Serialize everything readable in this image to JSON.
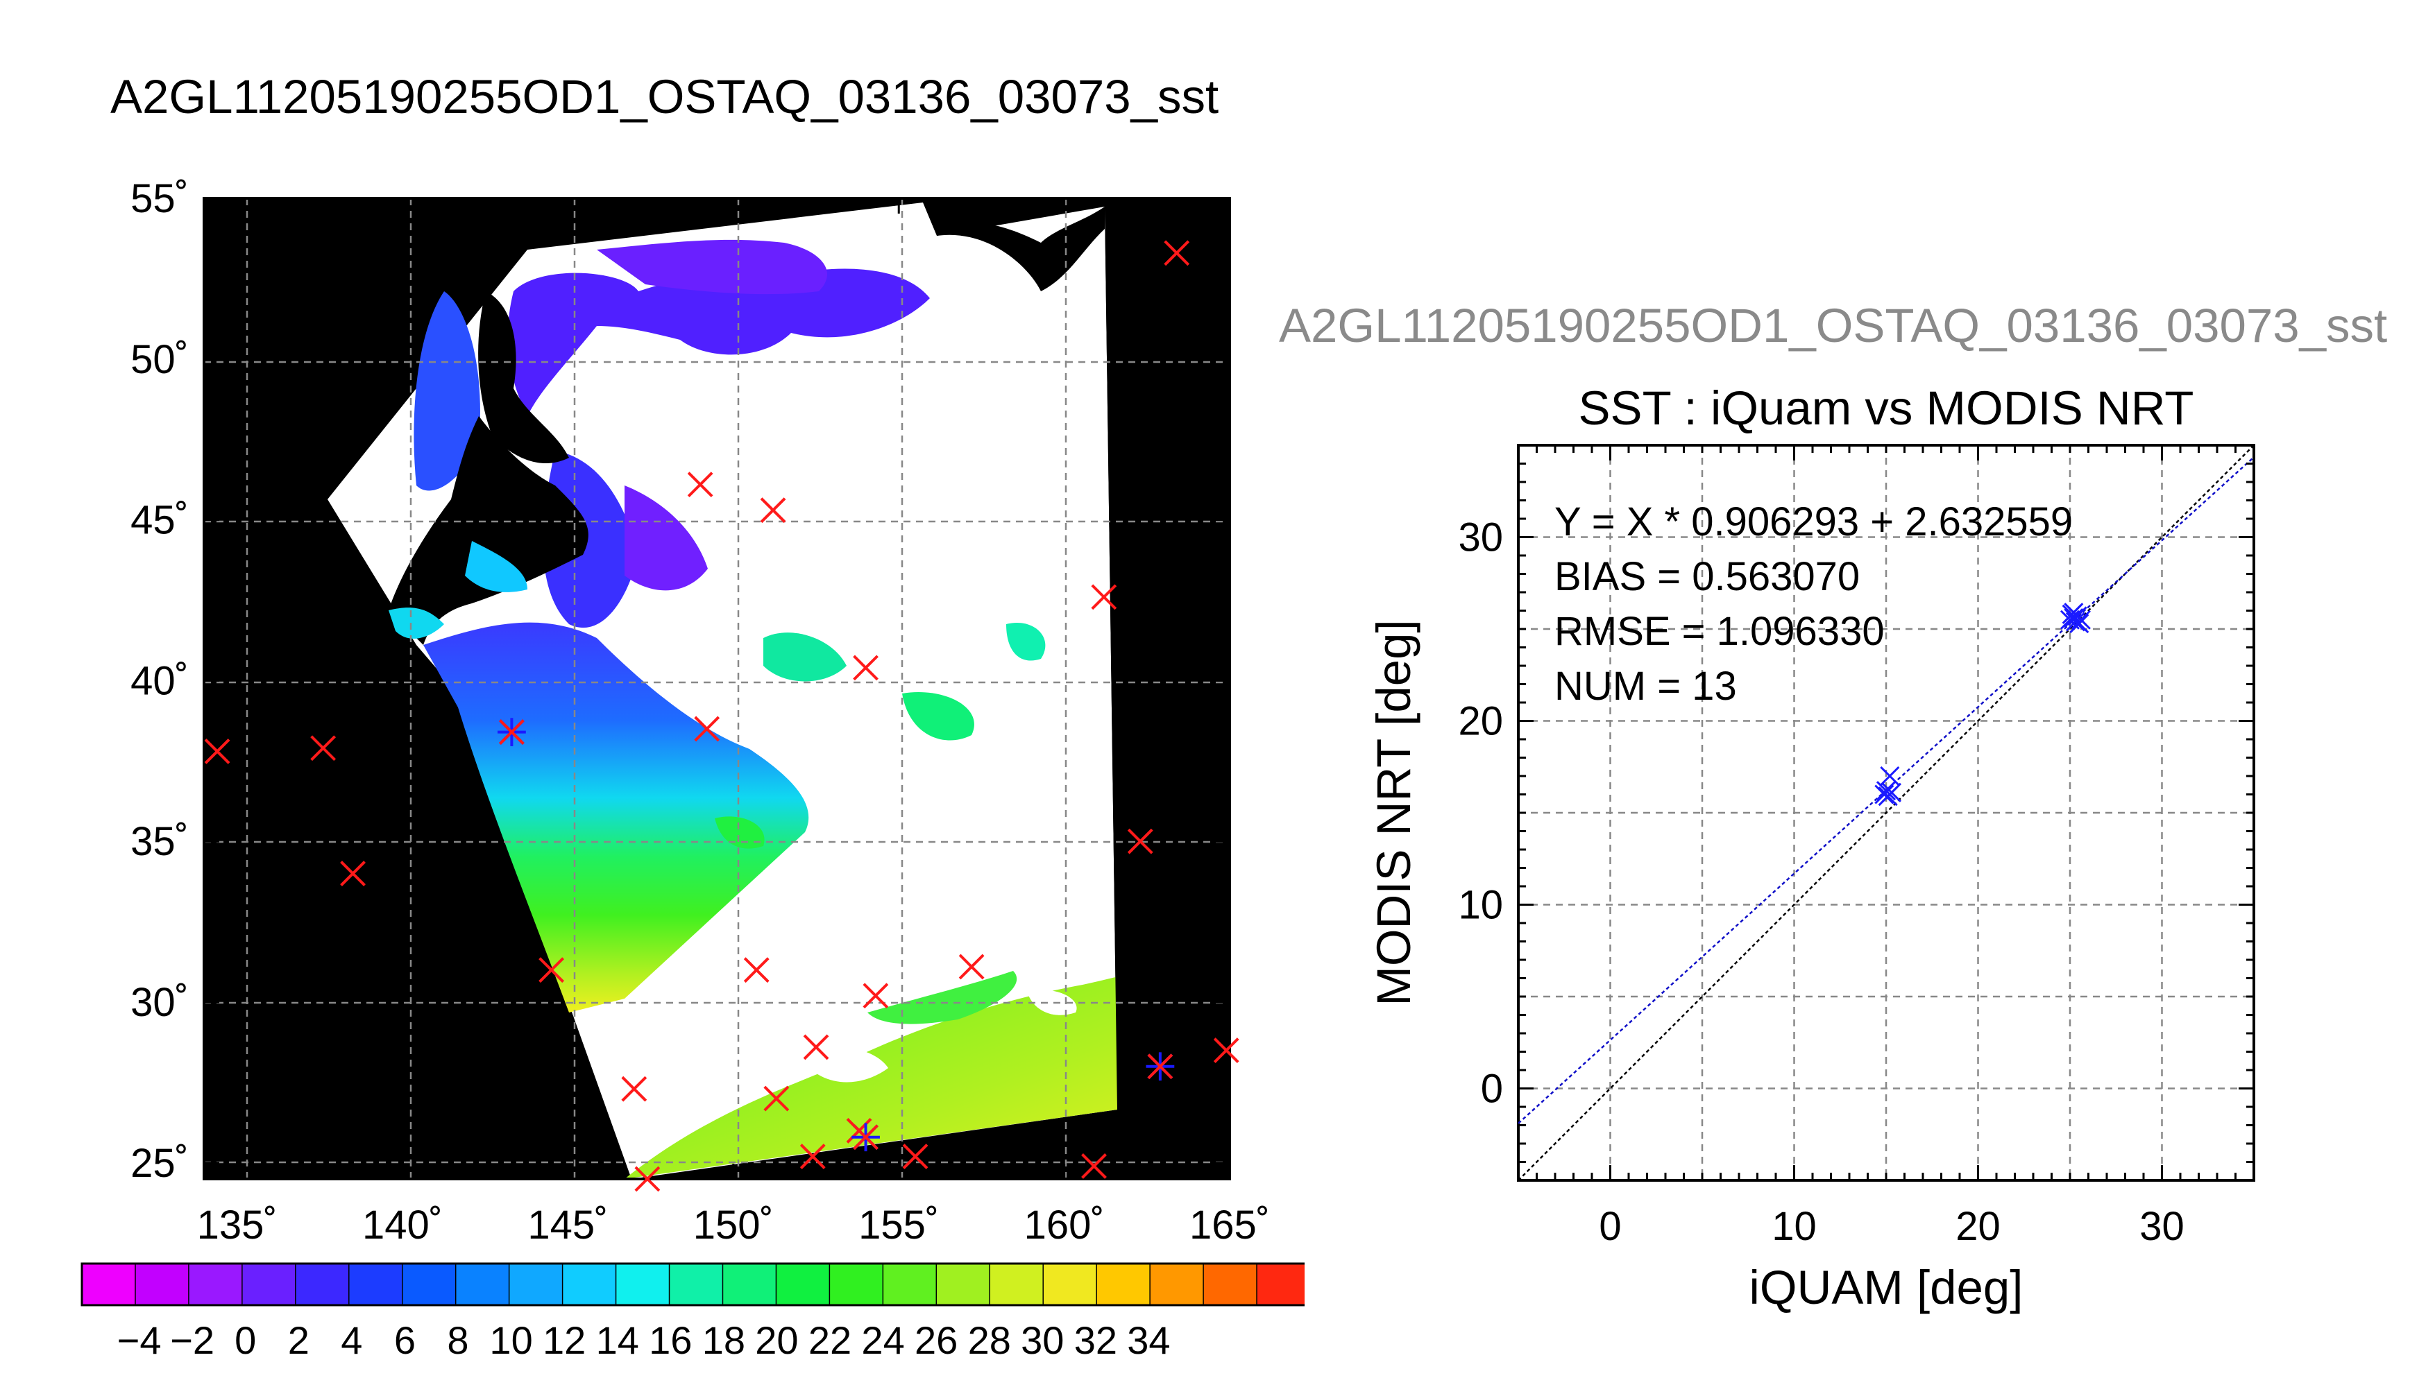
{
  "map_title": "A2GL11205190255OD1_OSTAQ_03136_03073_sst",
  "scatter_header": "A2GL11205190255OD1_OSTAQ_03136_03073_sst",
  "colors": {
    "land": "#000000",
    "cloud": "#ffffff",
    "map_marker": "#ff1a1a",
    "match_marker": "#1a1aff",
    "fit_line": "#1010c8",
    "identity_line": "#000000",
    "grid": "#888888"
  },
  "colorbar": {
    "ticks": [
      "−4",
      "−2",
      "0",
      "2",
      "4",
      "6",
      "8",
      "10",
      "12",
      "14",
      "16",
      "18",
      "20",
      "22",
      "24",
      "26",
      "28",
      "30",
      "32",
      "34"
    ],
    "colors": [
      "#ee00ff",
      "#c200ff",
      "#9a18ff",
      "#6a20ff",
      "#3c28ff",
      "#1c3cff",
      "#0a5aff",
      "#0a82ff",
      "#10a8ff",
      "#10ccff",
      "#10f0ee",
      "#10f0a8",
      "#10f078",
      "#10f040",
      "#30f020",
      "#60f020",
      "#a0f020",
      "#d0f020",
      "#f0e820",
      "#ffc800",
      "#ff9800",
      "#ff6800",
      "#ff2810"
    ]
  },
  "chart_data": [
    {
      "type": "scatter",
      "title": "",
      "xlabel": "",
      "ylabel": "",
      "x_ticks": [
        "135˚",
        "140˚",
        "145˚",
        "150˚",
        "155˚",
        "160˚",
        "165˚"
      ],
      "y_ticks": [
        "55˚",
        "50˚",
        "45˚",
        "40˚",
        "35˚",
        "30˚",
        "25˚"
      ],
      "xlim": [
        134,
        165
      ],
      "ylim": [
        24.5,
        55
      ],
      "grid": true,
      "series": [
        {
          "marker": "x",
          "x": [
            134.4,
            137.6,
            138.5,
            144.5,
            143.3,
            147.0,
            149.0,
            151.2,
            149.2,
            154.0,
            150.7,
            154.3,
            152.5,
            151.3,
            152.4,
            153.8,
            155.5,
            157.2,
            161.2,
            162.3,
            164.9,
            162.9,
            163.4,
            160.9,
            147.4
          ],
          "y": [
            37.8,
            37.9,
            34.0,
            31.0,
            38.4,
            27.3,
            46.1,
            45.3,
            38.5,
            40.4,
            31.0,
            30.2,
            28.6,
            27.0,
            25.2,
            26.0,
            25.2,
            31.1,
            42.6,
            35.0,
            28.5,
            28.0,
            53.3,
            24.9,
            24.5
          ]
        },
        {
          "marker": "*",
          "x": [
            143.3,
            154.0,
            162.9
          ],
          "y": [
            38.4,
            25.8,
            28.0
          ]
        }
      ]
    },
    {
      "type": "scatter",
      "title": "SST : iQuam vs MODIS NRT",
      "xlabel": "iQUAM [deg]",
      "ylabel": "MODIS NRT [deg]",
      "x_ticks": [
        "0",
        "10",
        "20",
        "30"
      ],
      "y_ticks": [
        "30",
        "20",
        "10",
        "0"
      ],
      "xlim": [
        -5,
        35
      ],
      "ylim": [
        -5,
        35
      ],
      "grid": true,
      "annotations": [
        "Y = X * 0.906293 + 2.632559",
        "BIAS = 0.563070",
        "RMSE = 1.096330",
        "NUM = 13"
      ],
      "series": [
        {
          "marker": "x",
          "x": [
            14.9,
            15.0,
            15.1,
            15.2,
            15.3,
            25.0,
            25.1,
            25.2,
            25.3,
            25.4,
            25.5,
            25.6,
            25.2
          ],
          "y": [
            16.0,
            16.2,
            15.9,
            17.0,
            16.1,
            25.5,
            25.8,
            25.6,
            25.4,
            25.7,
            25.3,
            25.5,
            25.9
          ]
        }
      ],
      "fit": {
        "slope": 0.906293,
        "intercept": 2.632559
      }
    }
  ]
}
